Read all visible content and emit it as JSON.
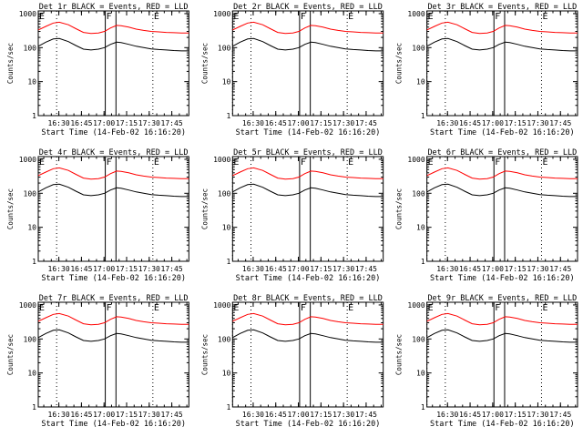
{
  "chart_data": {
    "type": "line",
    "panels": [
      {
        "title": "Det 1r BLACK = Events, RED = LLD",
        "ylabel": "Counts/sec",
        "xlabel": "Start Time (14-Feb-02 16:16:20)"
      },
      {
        "title": "Det 2r BLACK = Events, RED = LLD",
        "ylabel": "Counts/sec",
        "xlabel": "Start Time (14-Feb-02 16:16:20)"
      },
      {
        "title": "Det 3r BLACK = Events, RED = LLD",
        "ylabel": "Counts/sec",
        "xlabel": "Start Time (14-Feb-02 16:16:20)"
      },
      {
        "title": "Det 4r BLACK = Events, RED = LLD",
        "ylabel": "Counts/sec",
        "xlabel": "Start Time (14-Feb-02 16:16:20)"
      },
      {
        "title": "Det 5r BLACK = Events, RED = LLD",
        "ylabel": "Counts/sec",
        "xlabel": "Start Time (14-Feb-02 16:16:20)"
      },
      {
        "title": "Det 6r BLACK = Events, RED = LLD",
        "ylabel": "Counts/sec",
        "xlabel": "Start Time (14-Feb-02 16:16:20)"
      },
      {
        "title": "Det 7r BLACK = Events, RED = LLD",
        "ylabel": "Counts/sec",
        "xlabel": "Start Time (14-Feb-02 16:16:20)"
      },
      {
        "title": "Det 8r BLACK = Events, RED = LLD",
        "ylabel": "Counts/sec",
        "xlabel": "Start Time (14-Feb-02 16:16:20)"
      },
      {
        "title": "Det 9r BLACK = Events, RED = LLD",
        "ylabel": "Counts/sec",
        "xlabel": "Start Time (14-Feb-02 16:16:20)"
      }
    ],
    "x_ticks": [
      "16:30",
      "16:45",
      "17:00",
      "17:15",
      "17:30",
      "17:45"
    ],
    "x_tick_minutes": [
      13.67,
      28.67,
      43.67,
      58.67,
      73.67,
      88.67
    ],
    "xlim_minutes": [
      0,
      100
    ],
    "y_scale": "log",
    "ylim": [
      1,
      1200
    ],
    "y_ticks": [
      1,
      10,
      100,
      1000
    ],
    "y_tick_labels": [
      "1",
      "10",
      "100",
      "1000"
    ],
    "markers": [
      {
        "label": "E",
        "minute": 0,
        "style": "dotted"
      },
      {
        "label": "",
        "minute": 12.2,
        "style": "dotted"
      },
      {
        "label": "F",
        "minute": 44.5,
        "style": "solid"
      },
      {
        "label": "",
        "minute": 51.6,
        "style": "solid"
      },
      {
        "label": "E",
        "minute": 76.1,
        "style": "dotted"
      }
    ],
    "series": [
      {
        "name": "BLACK = Events",
        "color": "#000000",
        "x": [
          0,
          5,
          10,
          14,
          20,
          25,
          30,
          35,
          40,
          44,
          48,
          52,
          55,
          60,
          65,
          70,
          75,
          80,
          85,
          90,
          95,
          100
        ],
        "y": [
          110,
          145,
          180,
          185,
          150,
          115,
          90,
          85,
          90,
          100,
          125,
          145,
          140,
          125,
          110,
          100,
          92,
          88,
          85,
          82,
          80,
          80
        ]
      },
      {
        "name": "RED = LLD",
        "color": "#ff0000",
        "x": [
          0,
          5,
          10,
          14,
          20,
          25,
          30,
          35,
          40,
          44,
          48,
          52,
          55,
          60,
          65,
          70,
          75,
          80,
          85,
          90,
          95,
          100
        ],
        "y": [
          330,
          420,
          530,
          560,
          470,
          360,
          280,
          260,
          270,
          300,
          380,
          450,
          440,
          400,
          350,
          320,
          300,
          290,
          280,
          275,
          270,
          270
        ]
      }
    ]
  }
}
